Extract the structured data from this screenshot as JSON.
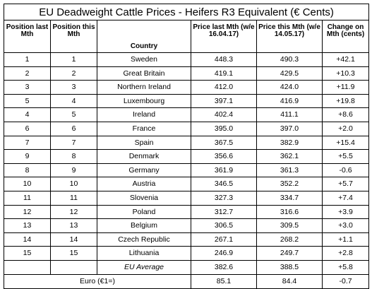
{
  "title": "EU Deadweight Cattle Prices - Heifers R3 Equivalent (€ Cents)",
  "headers": {
    "pos_last": "Position last Mth",
    "pos_this": "Position this Mth",
    "country": "Country",
    "price_last": "Price last Mth (w/e 16.04.17)",
    "price_this": "Price this Mth (w/e 14.05.17)",
    "change": "Change on Mth (cents)"
  },
  "rows": [
    {
      "pos_last": "1",
      "pos_this": "1",
      "country": "Sweden",
      "price_last": "448.3",
      "price_this": "490.3",
      "change": "+42.1"
    },
    {
      "pos_last": "2",
      "pos_this": "2",
      "country": "Great Britain",
      "price_last": "419.1",
      "price_this": "429.5",
      "change": "+10.3"
    },
    {
      "pos_last": "3",
      "pos_this": "3",
      "country": "Northern Ireland",
      "price_last": "412.0",
      "price_this": "424.0",
      "change": "+11.9"
    },
    {
      "pos_last": "5",
      "pos_this": "4",
      "country": "Luxembourg",
      "price_last": "397.1",
      "price_this": "416.9",
      "change": "+19.8"
    },
    {
      "pos_last": "4",
      "pos_this": "5",
      "country": "Ireland",
      "price_last": "402.4",
      "price_this": "411.1",
      "change": "+8.6"
    },
    {
      "pos_last": "6",
      "pos_this": "6",
      "country": "France",
      "price_last": "395.0",
      "price_this": "397.0",
      "change": "+2.0"
    },
    {
      "pos_last": "7",
      "pos_this": "7",
      "country": "Spain",
      "price_last": "367.5",
      "price_this": "382.9",
      "change": "+15.4"
    },
    {
      "pos_last": "9",
      "pos_this": "8",
      "country": "Denmark",
      "price_last": "356.6",
      "price_this": "362.1",
      "change": "+5.5"
    },
    {
      "pos_last": "8",
      "pos_this": "9",
      "country": "Germany",
      "price_last": "361.9",
      "price_this": "361.3",
      "change": "-0.6"
    },
    {
      "pos_last": "10",
      "pos_this": "10",
      "country": "Austria",
      "price_last": "346.5",
      "price_this": "352.2",
      "change": "+5.7"
    },
    {
      "pos_last": "11",
      "pos_this": "11",
      "country": "Slovenia",
      "price_last": "327.3",
      "price_this": "334.7",
      "change": "+7.4"
    },
    {
      "pos_last": "12",
      "pos_this": "12",
      "country": "Poland",
      "price_last": "312.7",
      "price_this": "316.6",
      "change": "+3.9"
    },
    {
      "pos_last": "13",
      "pos_this": "13",
      "country": "Belgium",
      "price_last": "306.5",
      "price_this": "309.5",
      "change": "+3.0"
    },
    {
      "pos_last": "14",
      "pos_this": "14",
      "country": "Czech Republic",
      "price_last": "267.1",
      "price_this": "268.2",
      "change": "+1.1"
    },
    {
      "pos_last": "15",
      "pos_this": "15",
      "country": "Lithuania",
      "price_last": "246.9",
      "price_this": "249.7",
      "change": "+2.8"
    }
  ],
  "average": {
    "label": "EU Average",
    "price_last": "382.6",
    "price_this": "388.5",
    "change": "+5.8"
  },
  "euro": {
    "label": "Euro (€1=)",
    "price_last": "85.1",
    "price_this": "84.4",
    "change": "-0.7"
  }
}
